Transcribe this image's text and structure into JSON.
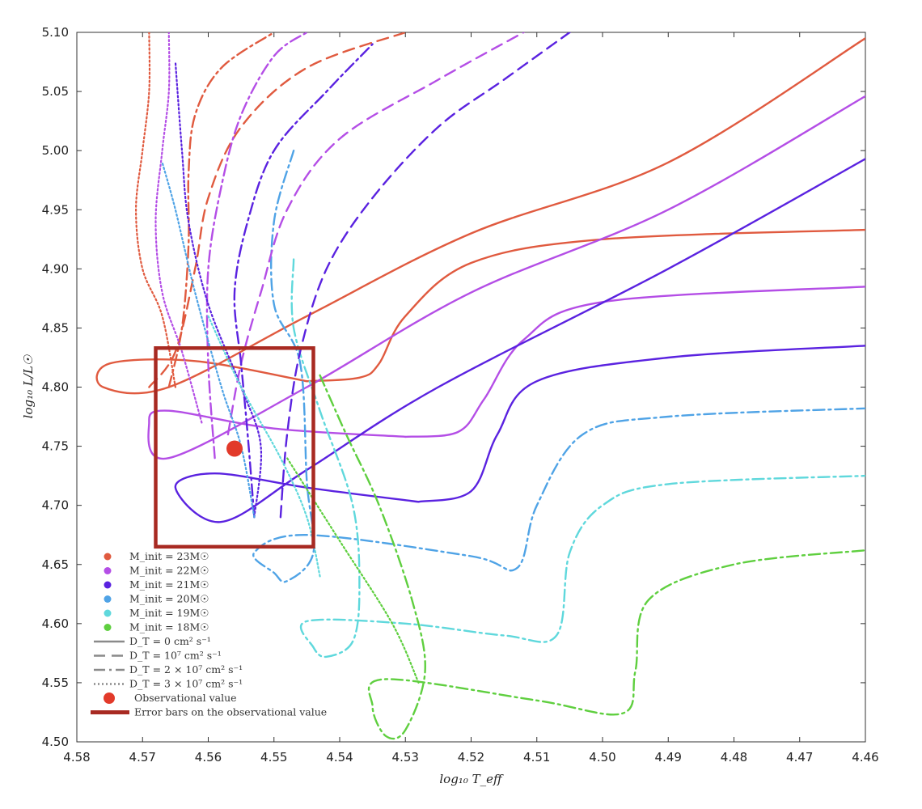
{
  "chart_data": {
    "type": "line",
    "title": "",
    "xlabel": "log₁₀ T_eff",
    "ylabel": "log₁₀ L/L☉",
    "xlim": [
      4.58,
      4.46
    ],
    "ylim": [
      4.5,
      5.1
    ],
    "x_ticks": [
      "4.58",
      "4.57",
      "4.56",
      "4.55",
      "4.54",
      "4.53",
      "4.52",
      "4.51",
      "4.50",
      "4.49",
      "4.48",
      "4.47",
      "4.46"
    ],
    "y_ticks": [
      "4.50",
      "4.55",
      "4.60",
      "4.65",
      "4.70",
      "4.75",
      "4.80",
      "4.85",
      "4.90",
      "4.95",
      "5.00",
      "5.05",
      "5.10"
    ],
    "grid": false,
    "legend_position": "bottom-left",
    "masses": [
      {
        "label": "M_init = 23M☉",
        "color": "#e05a3f"
      },
      {
        "label": "M_init = 22M☉",
        "color": "#b44ee6"
      },
      {
        "label": "M_init = 21M☉",
        "color": "#5a22e0"
      },
      {
        "label": "M_init = 20M☉",
        "color": "#4fa3e6"
      },
      {
        "label": "M_init = 19M☉",
        "color": "#5fd8dc"
      },
      {
        "label": "M_init = 18M☉",
        "color": "#5fcf3f"
      }
    ],
    "line_styles": [
      {
        "label": "D_T = 0 cm² s⁻¹",
        "dash": "solid"
      },
      {
        "label": "D_T = 10⁷ cm² s⁻¹",
        "dash": "dashed"
      },
      {
        "label": "D_T = 2 × 10⁷ cm² s⁻¹",
        "dash": "dashdot"
      },
      {
        "label": "D_T = 3 × 10⁷ cm² s⁻¹",
        "dash": "dotted"
      }
    ],
    "observation": {
      "label": "Observational value",
      "x": 4.556,
      "y": 4.748,
      "color": "#e23a2a"
    },
    "error_box": {
      "label": "Error bars on the observational value",
      "x": [
        4.568,
        4.544
      ],
      "y": [
        4.665,
        4.833
      ],
      "color": "#a82a22"
    },
    "series": [
      {
        "mass": 23,
        "style": "solid",
        "color": "#e05a3f",
        "points": [
          [
            4.545,
            4.805
          ],
          [
            4.562,
            4.822
          ],
          [
            4.575,
            4.82
          ],
          [
            4.576,
            4.8
          ],
          [
            4.566,
            4.8
          ],
          [
            4.545,
            4.86
          ],
          [
            4.52,
            4.93
          ],
          [
            4.49,
            4.99
          ],
          [
            4.46,
            5.095
          ]
        ]
      },
      {
        "mass": 23,
        "style": "solid",
        "color": "#e05a3f",
        "points": [
          [
            4.545,
            4.805
          ],
          [
            4.537,
            4.808
          ],
          [
            4.534,
            4.82
          ],
          [
            4.53,
            4.86
          ],
          [
            4.52,
            4.905
          ],
          [
            4.5,
            4.925
          ],
          [
            4.46,
            4.933
          ]
        ]
      },
      {
        "mass": 22,
        "style": "solid",
        "color": "#b44ee6",
        "points": [
          [
            4.53,
            4.758
          ],
          [
            4.55,
            4.765
          ],
          [
            4.566,
            4.78
          ],
          [
            4.569,
            4.77
          ],
          [
            4.566,
            4.74
          ],
          [
            4.545,
            4.8
          ],
          [
            4.52,
            4.88
          ],
          [
            4.49,
            4.95
          ],
          [
            4.46,
            5.046
          ]
        ]
      },
      {
        "mass": 22,
        "style": "solid",
        "color": "#b44ee6",
        "points": [
          [
            4.53,
            4.758
          ],
          [
            4.522,
            4.762
          ],
          [
            4.518,
            4.79
          ],
          [
            4.512,
            4.84
          ],
          [
            4.5,
            4.872
          ],
          [
            4.46,
            4.885
          ]
        ]
      },
      {
        "mass": 21,
        "style": "solid",
        "color": "#5a22e0",
        "points": [
          [
            4.528,
            4.703
          ],
          [
            4.545,
            4.715
          ],
          [
            4.559,
            4.727
          ],
          [
            4.565,
            4.715
          ],
          [
            4.558,
            4.686
          ],
          [
            4.545,
            4.73
          ],
          [
            4.525,
            4.8
          ],
          [
            4.49,
            4.9
          ],
          [
            4.46,
            4.993
          ]
        ]
      },
      {
        "mass": 21,
        "style": "solid",
        "color": "#5a22e0",
        "points": [
          [
            4.528,
            4.703
          ],
          [
            4.52,
            4.712
          ],
          [
            4.516,
            4.76
          ],
          [
            4.51,
            4.805
          ],
          [
            4.49,
            4.825
          ],
          [
            4.46,
            4.835
          ]
        ]
      },
      {
        "mass": 20,
        "style": "dashdot",
        "color": "#4fa3e6",
        "points": [
          [
            4.547,
            5.0
          ],
          [
            4.55,
            4.94
          ],
          [
            4.55,
            4.87
          ],
          [
            4.546,
            4.82
          ],
          [
            4.545,
            4.72
          ],
          [
            4.544,
            4.66
          ],
          [
            4.548,
            4.636
          ],
          [
            4.55,
            4.643
          ],
          [
            4.553,
            4.66
          ],
          [
            4.545,
            4.675
          ],
          [
            4.52,
            4.657
          ],
          [
            4.513,
            4.647
          ],
          [
            4.51,
            4.7
          ],
          [
            4.503,
            4.76
          ],
          [
            4.49,
            4.775
          ],
          [
            4.46,
            4.782
          ]
        ]
      },
      {
        "mass": 19,
        "style": "dashdot",
        "color": "#5fd8dc",
        "points": [
          [
            4.547,
            4.908
          ],
          [
            4.547,
            4.85
          ],
          [
            4.543,
            4.78
          ],
          [
            4.538,
            4.7
          ],
          [
            4.537,
            4.63
          ],
          [
            4.538,
            4.585
          ],
          [
            4.542,
            4.572
          ],
          [
            4.544,
            4.58
          ],
          [
            4.545,
            4.602
          ],
          [
            4.53,
            4.6
          ],
          [
            4.515,
            4.59
          ],
          [
            4.507,
            4.59
          ],
          [
            4.505,
            4.66
          ],
          [
            4.5,
            4.7
          ],
          [
            4.49,
            4.718
          ],
          [
            4.46,
            4.725
          ]
        ]
      },
      {
        "mass": 18,
        "style": "dashdot",
        "color": "#5fcf3f",
        "points": [
          [
            4.543,
            4.81
          ],
          [
            4.539,
            4.76
          ],
          [
            4.534,
            4.7
          ],
          [
            4.529,
            4.62
          ],
          [
            4.527,
            4.56
          ],
          [
            4.53,
            4.51
          ],
          [
            4.533,
            4.505
          ],
          [
            4.535,
            4.53
          ],
          [
            4.533,
            4.553
          ],
          [
            4.51,
            4.535
          ],
          [
            4.497,
            4.524
          ],
          [
            4.495,
            4.56
          ],
          [
            4.493,
            4.62
          ],
          [
            4.48,
            4.65
          ],
          [
            4.46,
            4.662
          ]
        ]
      },
      {
        "mass": 23,
        "style": "dashed",
        "color": "#e05a3f",
        "points": [
          [
            4.569,
            4.8
          ],
          [
            4.565,
            4.83
          ],
          [
            4.562,
            4.9
          ],
          [
            4.56,
            4.96
          ],
          [
            4.555,
            5.02
          ],
          [
            4.545,
            5.07
          ],
          [
            4.53,
            5.1
          ]
        ]
      },
      {
        "mass": 22,
        "style": "dashed",
        "color": "#b44ee6",
        "points": [
          [
            4.557,
            4.76
          ],
          [
            4.555,
            4.82
          ],
          [
            4.552,
            4.88
          ],
          [
            4.548,
            4.95
          ],
          [
            4.54,
            5.01
          ],
          [
            4.525,
            5.06
          ],
          [
            4.512,
            5.1
          ]
        ]
      },
      {
        "mass": 21,
        "style": "dashed",
        "color": "#5a22e0",
        "points": [
          [
            4.549,
            4.69
          ],
          [
            4.548,
            4.76
          ],
          [
            4.546,
            4.83
          ],
          [
            4.542,
            4.9
          ],
          [
            4.535,
            4.96
          ],
          [
            4.525,
            5.02
          ],
          [
            4.515,
            5.06
          ],
          [
            4.505,
            5.1
          ]
        ]
      },
      {
        "mass": 23,
        "style": "dashdot",
        "color": "#e05a3f",
        "points": [
          [
            4.566,
            4.8
          ],
          [
            4.564,
            4.85
          ],
          [
            4.563,
            4.92
          ],
          [
            4.563,
            4.98
          ],
          [
            4.562,
            5.03
          ],
          [
            4.558,
            5.07
          ],
          [
            4.55,
            5.1
          ]
        ]
      },
      {
        "mass": 22,
        "style": "dashdot",
        "color": "#b44ee6",
        "points": [
          [
            4.559,
            4.74
          ],
          [
            4.56,
            4.82
          ],
          [
            4.56,
            4.9
          ],
          [
            4.558,
            4.97
          ],
          [
            4.555,
            5.03
          ],
          [
            4.55,
            5.08
          ],
          [
            4.545,
            5.1
          ]
        ]
      },
      {
        "mass": 21,
        "style": "dashdot",
        "color": "#5a22e0",
        "points": [
          [
            4.553,
            4.69
          ],
          [
            4.554,
            4.76
          ],
          [
            4.555,
            4.82
          ],
          [
            4.556,
            4.88
          ],
          [
            4.554,
            4.94
          ],
          [
            4.55,
            5.0
          ],
          [
            4.542,
            5.05
          ],
          [
            4.535,
            5.09
          ]
        ]
      },
      {
        "mass": 23,
        "style": "dotted",
        "color": "#e05a3f",
        "points": [
          [
            4.565,
            4.8
          ],
          [
            4.567,
            4.86
          ],
          [
            4.57,
            4.9
          ],
          [
            4.571,
            4.95
          ],
          [
            4.57,
            5.0
          ],
          [
            4.569,
            5.05
          ],
          [
            4.569,
            5.1
          ]
        ]
      },
      {
        "mass": 22,
        "style": "dotted",
        "color": "#b44ee6",
        "points": [
          [
            4.561,
            4.77
          ],
          [
            4.564,
            4.83
          ],
          [
            4.567,
            4.88
          ],
          [
            4.568,
            4.94
          ],
          [
            4.567,
            5.0
          ],
          [
            4.566,
            5.05
          ],
          [
            4.566,
            5.1
          ]
        ]
      },
      {
        "mass": 21,
        "style": "dotted",
        "color": "#5a22e0",
        "points": [
          [
            4.553,
            4.69
          ],
          [
            4.552,
            4.75
          ],
          [
            4.555,
            4.8
          ],
          [
            4.56,
            4.87
          ],
          [
            4.563,
            4.94
          ],
          [
            4.564,
            5.0
          ],
          [
            4.565,
            5.075
          ]
        ]
      },
      {
        "mass": 20,
        "style": "dotted",
        "color": "#4fa3e6",
        "points": [
          [
            4.553,
            4.69
          ],
          [
            4.555,
            4.75
          ],
          [
            4.558,
            4.8
          ],
          [
            4.562,
            4.88
          ],
          [
            4.565,
            4.95
          ],
          [
            4.567,
            4.99
          ]
        ]
      },
      {
        "mass": 19,
        "style": "dotted",
        "color": "#5fd8dc",
        "points": [
          [
            4.543,
            4.64
          ],
          [
            4.545,
            4.69
          ],
          [
            4.549,
            4.74
          ],
          [
            4.555,
            4.8
          ],
          [
            4.56,
            4.86
          ]
        ]
      },
      {
        "mass": 18,
        "style": "dotted",
        "color": "#5fcf3f",
        "points": [
          [
            4.528,
            4.55
          ],
          [
            4.532,
            4.6
          ],
          [
            4.54,
            4.67
          ],
          [
            4.548,
            4.74
          ]
        ]
      }
    ]
  }
}
